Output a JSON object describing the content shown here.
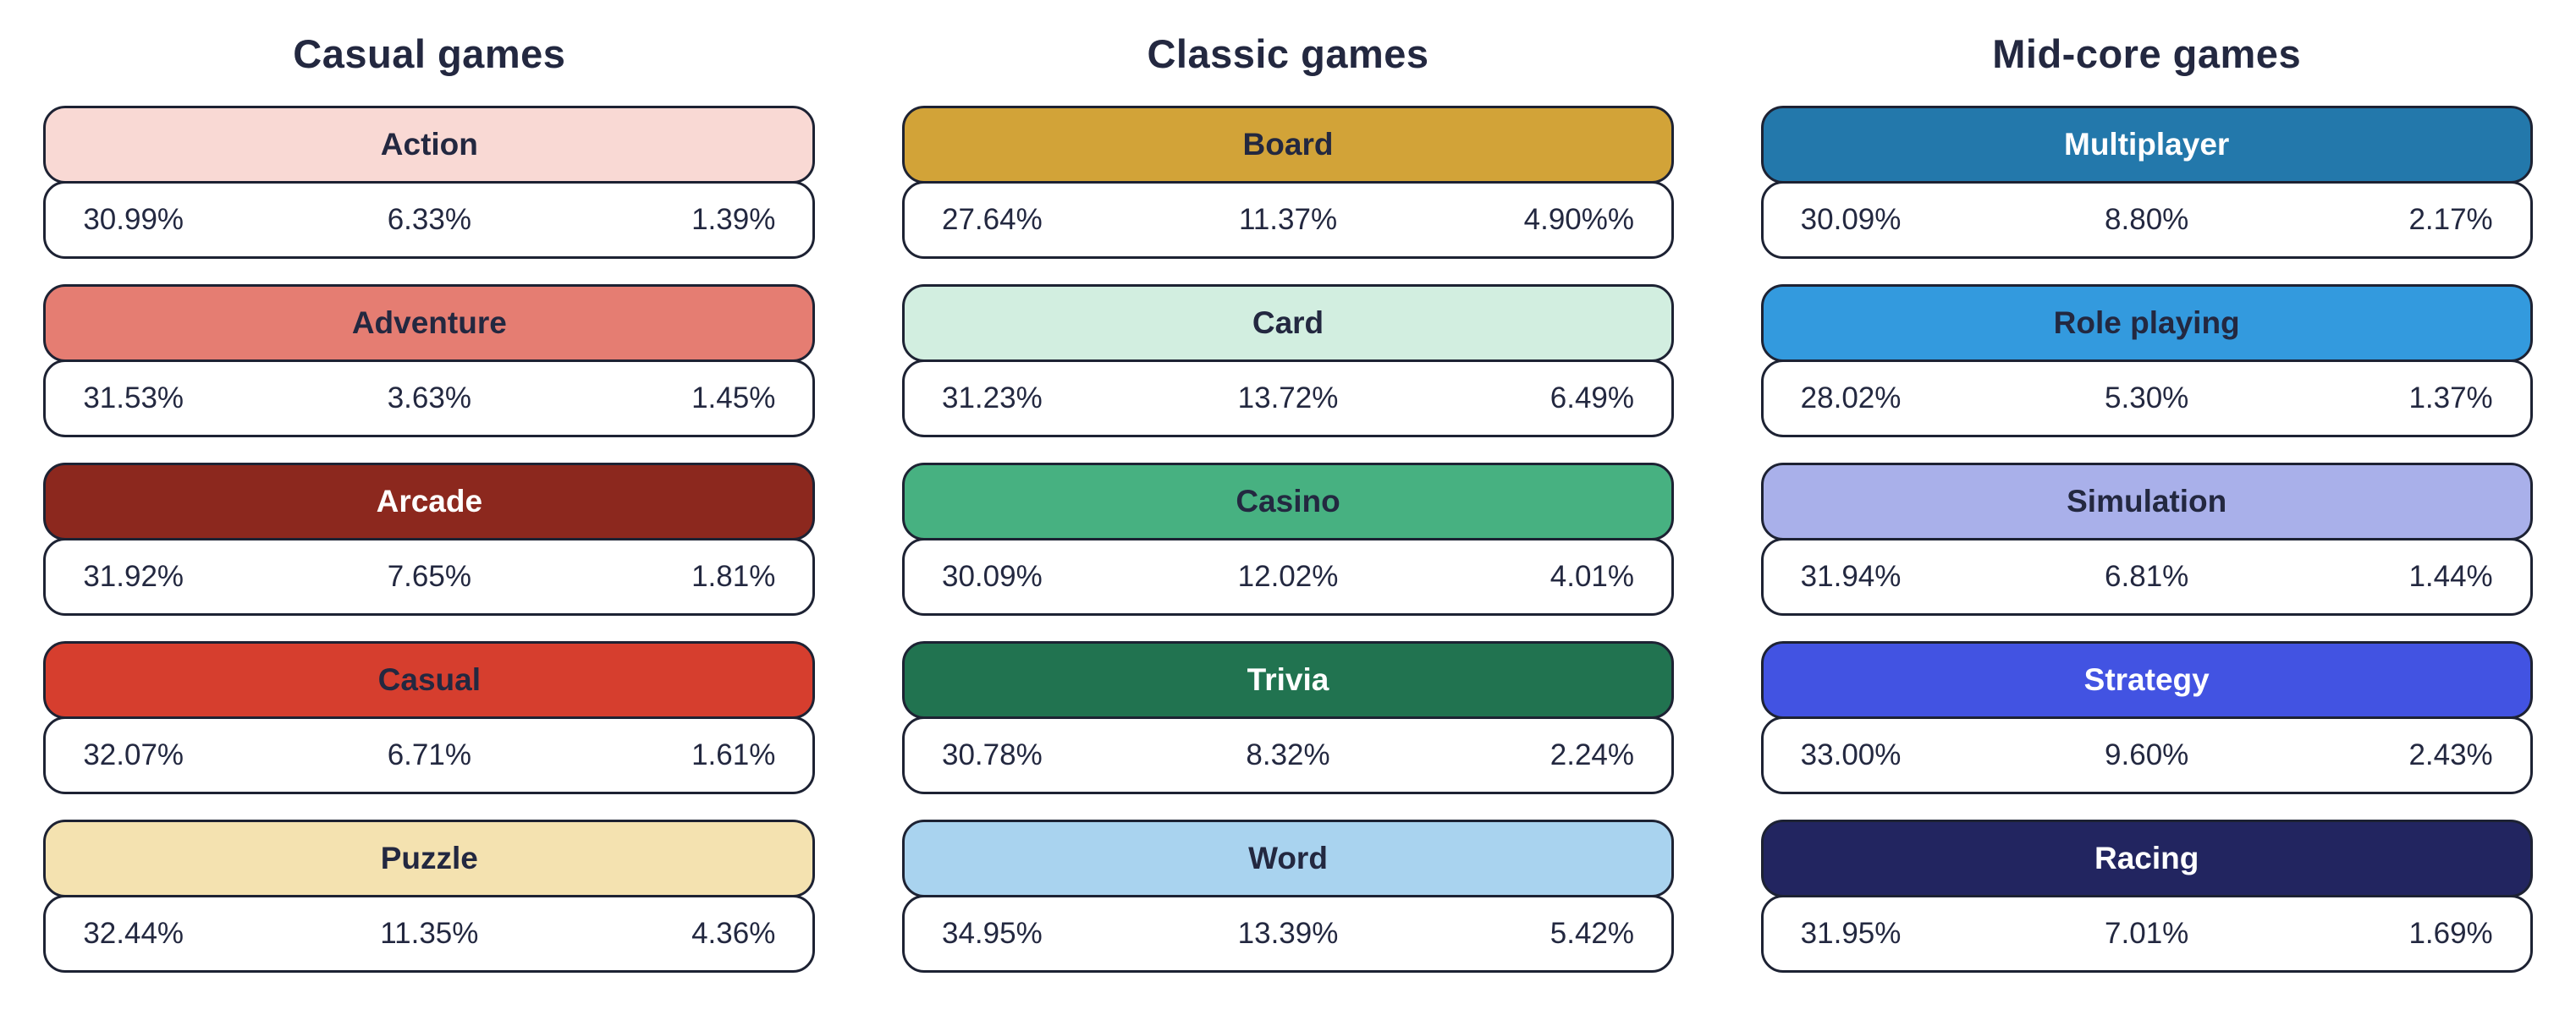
{
  "page": {
    "background": "#ffffff",
    "border_color": "#1d2233",
    "text_dark": "#232840",
    "text_light": "#ffffff"
  },
  "chart_data": {
    "type": "table",
    "legend_position": "none",
    "groups": [
      {
        "title": "Casual games",
        "rows": [
          {
            "category": "Action",
            "color": "#f9d9d4",
            "label_color": "#232840",
            "values": [
              "30.99%",
              "6.33%",
              "1.39%"
            ]
          },
          {
            "category": "Adventure",
            "color": "#e57d72",
            "label_color": "#232840",
            "values": [
              "31.53%",
              "3.63%",
              "1.45%"
            ]
          },
          {
            "category": "Arcade",
            "color": "#8c281e",
            "label_color": "#ffffff",
            "values": [
              "31.92%",
              "7.65%",
              "1.81%"
            ]
          },
          {
            "category": "Casual",
            "color": "#d63e2e",
            "label_color": "#232840",
            "values": [
              "32.07%",
              "6.71%",
              "1.61%"
            ]
          },
          {
            "category": "Puzzle",
            "color": "#f4e2b0",
            "label_color": "#232840",
            "values": [
              "32.44%",
              "11.35%",
              "4.36%"
            ]
          }
        ]
      },
      {
        "title": "Classic games",
        "rows": [
          {
            "category": "Board",
            "color": "#d2a338",
            "label_color": "#232840",
            "values": [
              "27.64%",
              "11.37%",
              "4.90%%"
            ]
          },
          {
            "category": "Card",
            "color": "#d2eee0",
            "label_color": "#232840",
            "values": [
              "31.23%",
              "13.72%",
              "6.49%"
            ]
          },
          {
            "category": "Casino",
            "color": "#47b181",
            "label_color": "#232840",
            "values": [
              "30.09%",
              "12.02%",
              "4.01%"
            ]
          },
          {
            "category": "Trivia",
            "color": "#217350",
            "label_color": "#ffffff",
            "values": [
              "30.78%",
              "8.32%",
              "2.24%"
            ]
          },
          {
            "category": "Word",
            "color": "#a9d3ef",
            "label_color": "#232840",
            "values": [
              "34.95%",
              "13.39%",
              "5.42%"
            ]
          }
        ]
      },
      {
        "title": "Mid-core games",
        "rows": [
          {
            "category": "Multiplayer",
            "color": "#2378ab",
            "label_color": "#ffffff",
            "values": [
              "30.09%",
              "8.80%",
              "2.17%"
            ]
          },
          {
            "category": "Role playing",
            "color": "#339ade",
            "label_color": "#232840",
            "values": [
              "28.02%",
              "5.30%",
              "1.37%"
            ]
          },
          {
            "category": "Simulation",
            "color": "#a9b0ea",
            "label_color": "#232840",
            "values": [
              "31.94%",
              "6.81%",
              "1.44%"
            ]
          },
          {
            "category": "Strategy",
            "color": "#4253e2",
            "label_color": "#ffffff",
            "values": [
              "33.00%",
              "9.60%",
              "2.43%"
            ]
          },
          {
            "category": "Racing",
            "color": "#222560",
            "label_color": "#ffffff",
            "values": [
              "31.95%",
              "7.01%",
              "1.69%"
            ]
          }
        ]
      }
    ]
  }
}
